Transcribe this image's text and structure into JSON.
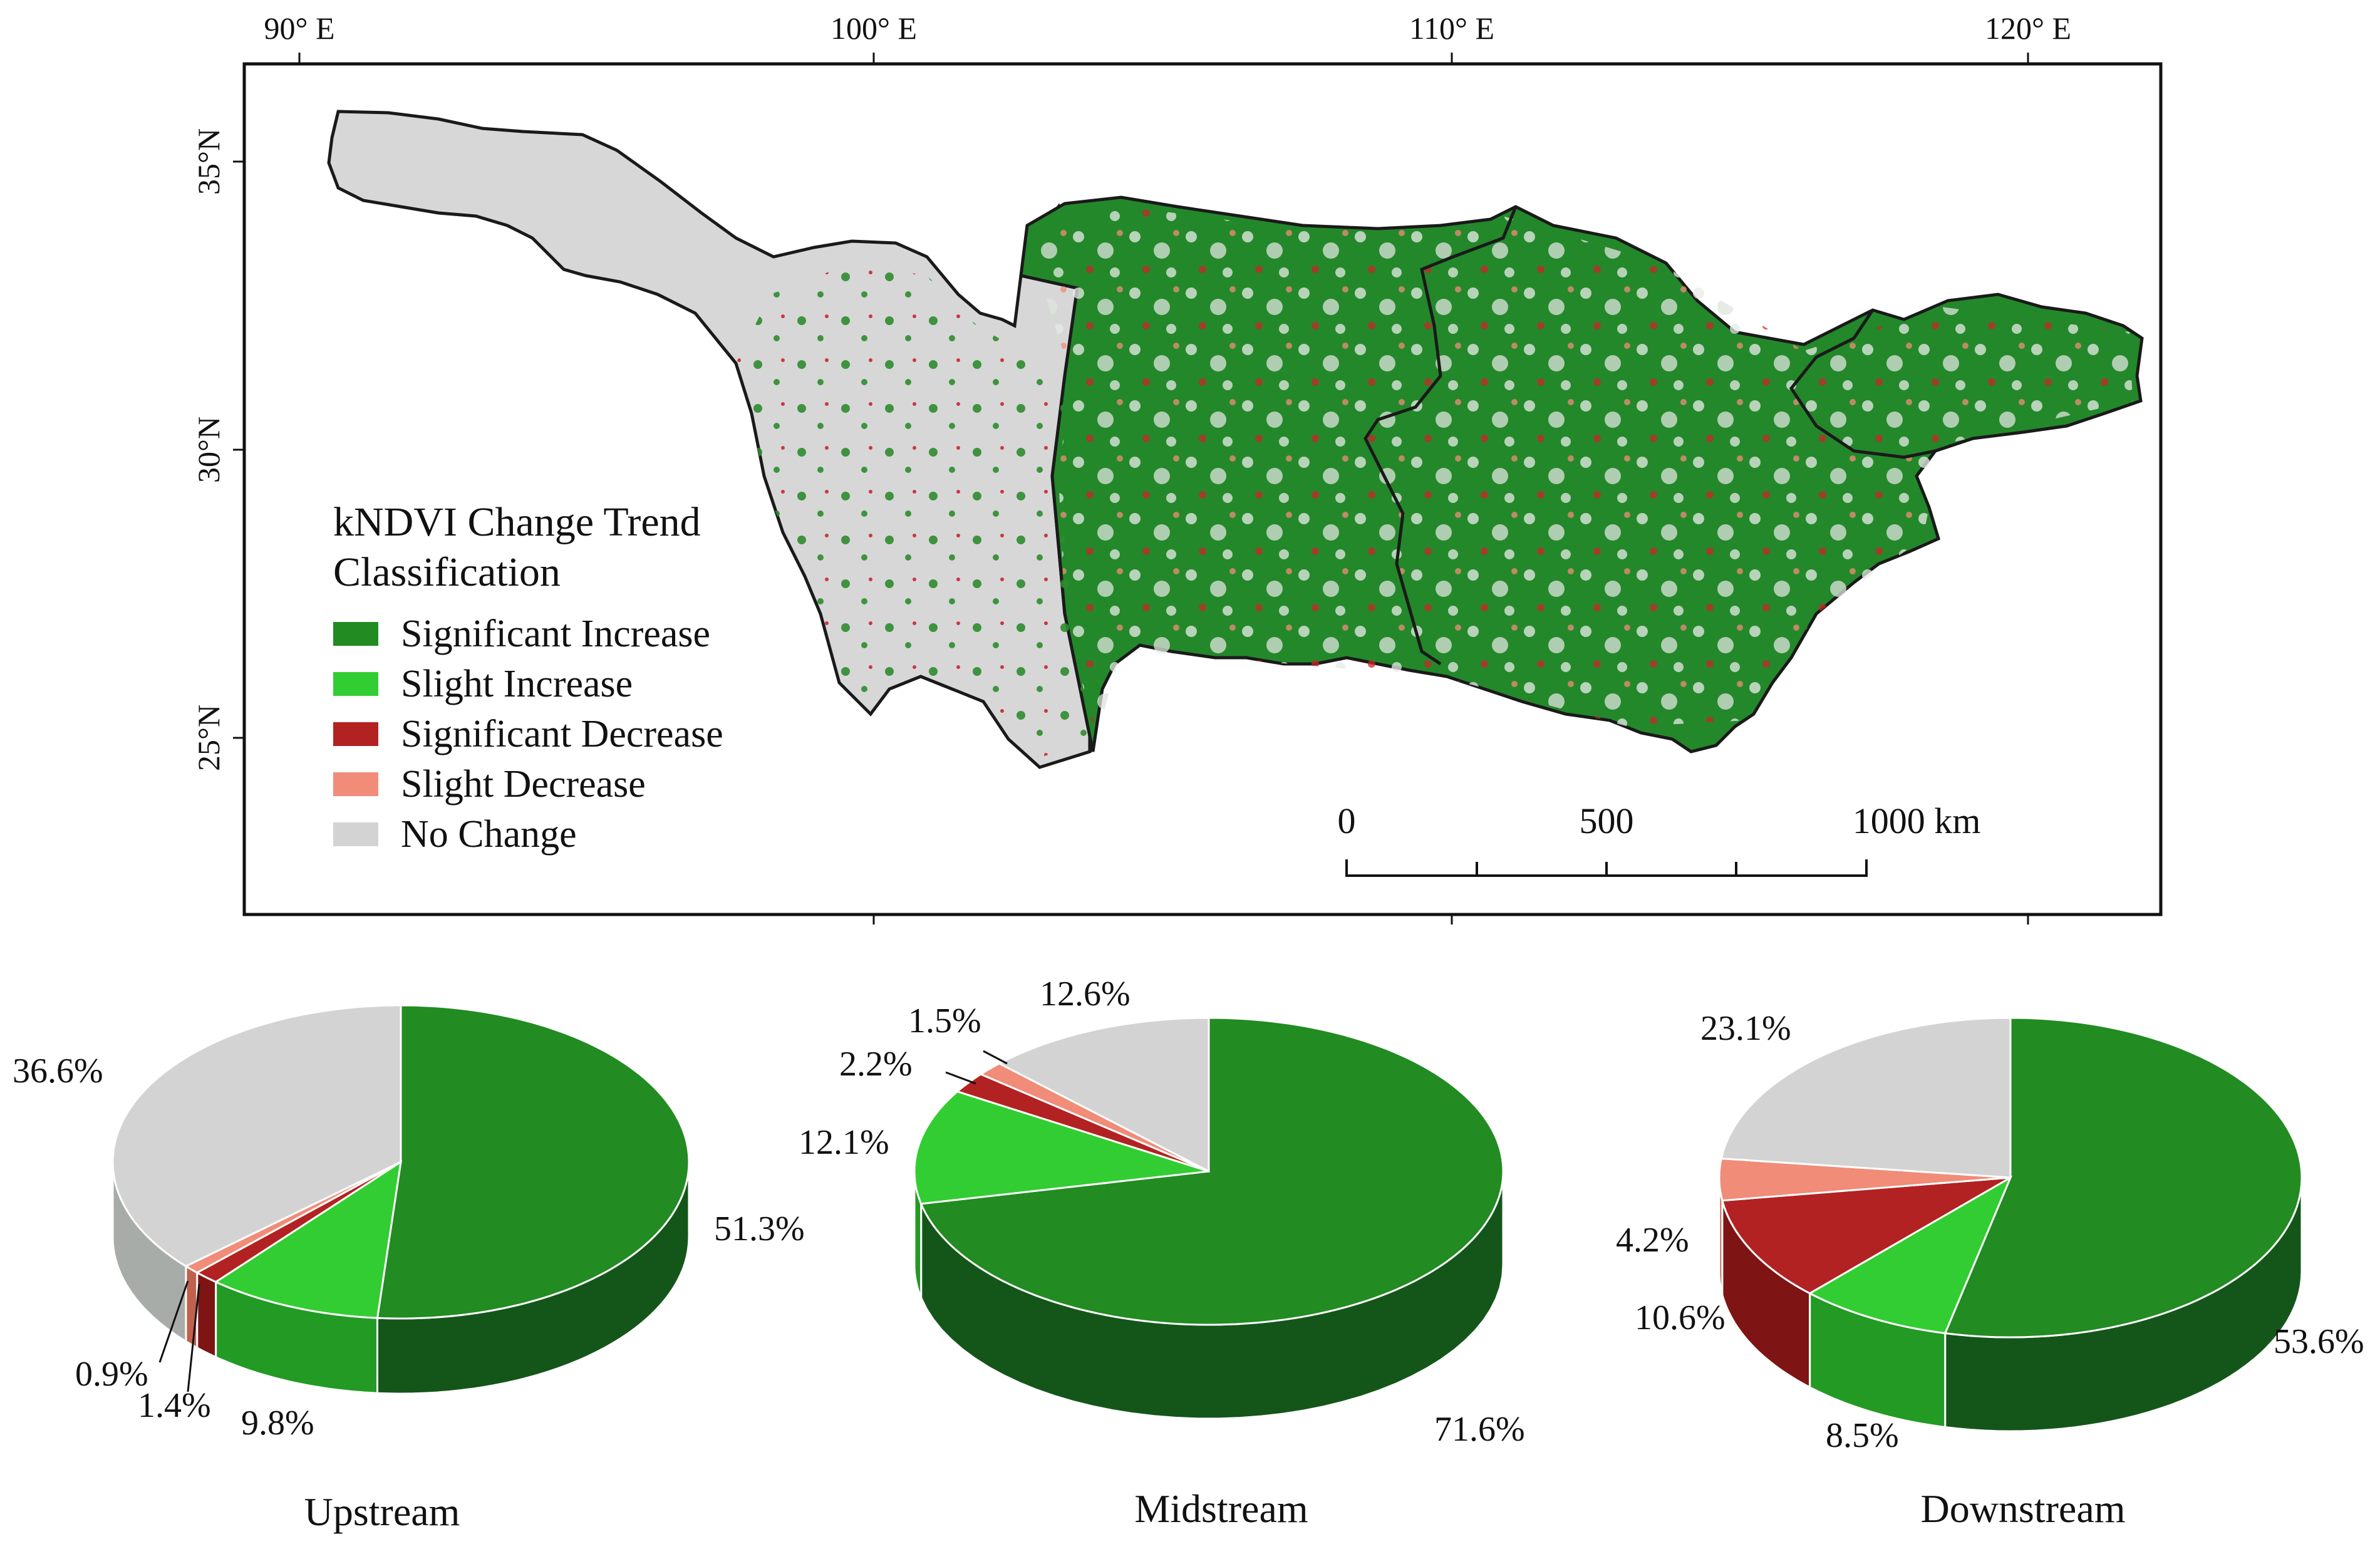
{
  "map": {
    "lon_ticks": [
      "90° E",
      "100° E",
      "110° E",
      "120° E"
    ],
    "lat_ticks": [
      "35°N",
      "30°N",
      "25°N"
    ],
    "legend": {
      "title_line1": "kNDVI Change Trend",
      "title_line2": "Classification",
      "items": [
        {
          "label": "Significant Increase",
          "color": "#228B22"
        },
        {
          "label": "Slight Increase",
          "color": "#32CD32"
        },
        {
          "label": "Significant Decrease",
          "color": "#B22222"
        },
        {
          "label": "Slight Decrease",
          "color": "#F08C78"
        },
        {
          "label": "No Change",
          "color": "#D3D3D3"
        }
      ]
    },
    "scale_bar": {
      "labels": [
        "0",
        "500",
        "1000 km"
      ]
    }
  },
  "chart_data": [
    {
      "type": "pie",
      "title": "Upstream",
      "categories": [
        "Significant Increase",
        "Slight Increase",
        "Significant Decrease",
        "Slight Decrease",
        "No Change"
      ],
      "values": [
        51.3,
        9.8,
        1.4,
        0.9,
        36.6
      ],
      "labels": [
        "51.3%",
        "9.8%",
        "1.4%",
        "0.9%",
        "36.6%"
      ]
    },
    {
      "type": "pie",
      "title": "Midstream",
      "categories": [
        "Significant Increase",
        "Slight Increase",
        "Significant Decrease",
        "Slight Decrease",
        "No Change"
      ],
      "values": [
        71.6,
        12.1,
        2.2,
        1.5,
        12.6
      ],
      "labels": [
        "71.6%",
        "12.1%",
        "2.2%",
        "1.5%",
        "12.6%"
      ]
    },
    {
      "type": "pie",
      "title": "Downstream",
      "categories": [
        "Significant Increase",
        "Slight Increase",
        "Significant Decrease",
        "Slight Decrease",
        "No Change"
      ],
      "values": [
        53.6,
        8.5,
        10.6,
        4.2,
        23.1
      ],
      "labels": [
        "53.6%",
        "8.5%",
        "10.6%",
        "4.2%",
        "23.1%"
      ]
    }
  ]
}
